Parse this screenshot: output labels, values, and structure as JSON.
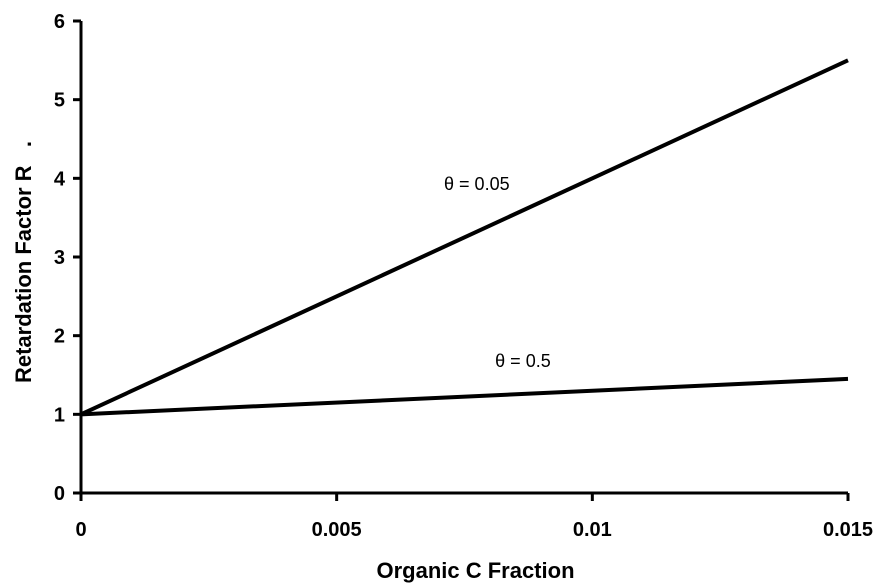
{
  "chart_data": {
    "type": "line",
    "xlabel": "Organic C Fraction",
    "ylabel": "Retardation Factor R   .",
    "xlim": [
      0,
      0.015
    ],
    "ylim": [
      0,
      6
    ],
    "xticks": [
      0,
      0.005,
      0.01,
      0.015
    ],
    "xtick_labels": [
      "0",
      "0.005",
      "0.01",
      "0.015"
    ],
    "yticks": [
      0,
      1,
      2,
      3,
      4,
      5,
      6
    ],
    "ytick_labels": [
      "0",
      "1",
      "2",
      "3",
      "4",
      "5",
      "6"
    ],
    "grid": false,
    "line_color": "#000000",
    "series": [
      {
        "x": [
          0,
          0.015
        ],
        "y": [
          1,
          5.5
        ]
      },
      {
        "x": [
          0,
          0.015
        ],
        "y": [
          1,
          1.45
        ]
      }
    ],
    "annotations": [
      {
        "text": "θ = 0.05",
        "x": 0.0071,
        "y": 3.85
      },
      {
        "text": "θ = 0.5",
        "x": 0.0081,
        "y": 1.6
      }
    ]
  }
}
